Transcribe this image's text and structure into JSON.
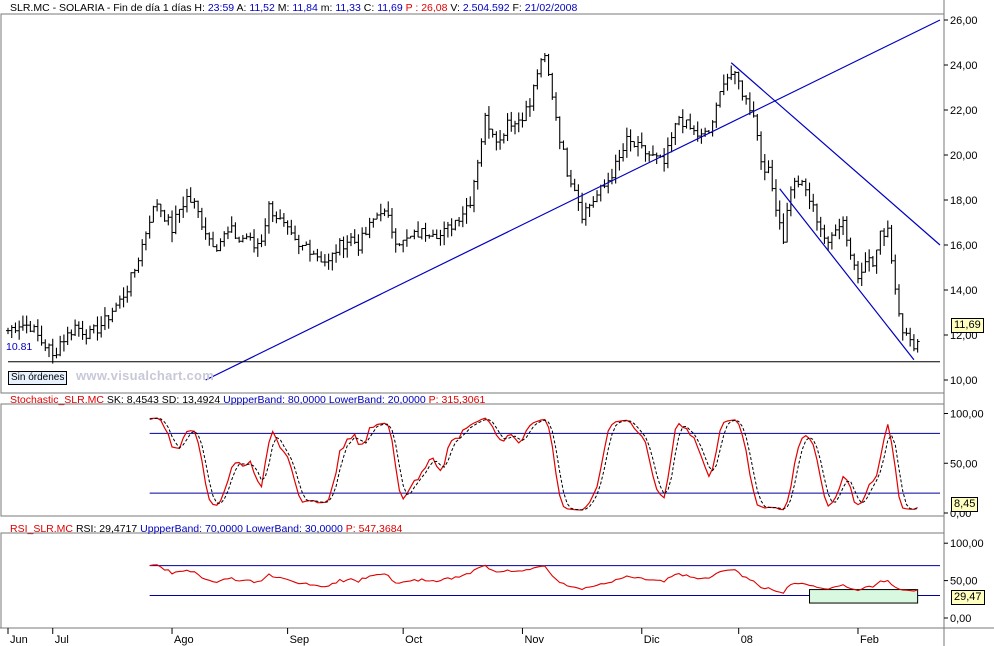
{
  "header": {
    "symbol": "SLR.MC - SOLARIA - Fin de día 1 días",
    "h_label": "H:",
    "h_val": "23:59",
    "a_label": "A:",
    "a_val": "11,52",
    "m_label": "M:",
    "m_val": "11,84",
    "mn_label": "m:",
    "mn_val": "11,33",
    "c_label": "C:",
    "c_val": "11,69",
    "p_label": "P :",
    "p_val": "26,08",
    "v_label": "V:",
    "v_val": "2.504.592",
    "f_label": "F:",
    "f_val": "21/02/2008"
  },
  "stoch_header": {
    "name": "Stochastic_SLR.MC",
    "sk_label": "SK:",
    "sk_val": "8,4543",
    "sd_label": "SD:",
    "sd_val": "13,4924",
    "ub_label": "UppperBand:",
    "ub_val": "80,0000",
    "lb_label": "LowerBand:",
    "lb_val": "20,0000",
    "p_label": "P:",
    "p_val": "315,3061"
  },
  "rsi_header": {
    "name": "RSI_SLR.MC",
    "rsi_label": "RSI:",
    "rsi_val": "29,4717",
    "ub_label": "UppperBand:",
    "ub_val": "70,0000",
    "lb_label": "LowerBand:",
    "lb_val": "30,0000",
    "p_label": "P:",
    "p_val": "547,3684"
  },
  "labels": {
    "support_level": "10.81",
    "no_orders": "Sin órdenes",
    "watermark": "www.visualchart.com",
    "last_price": "11,69",
    "last_stoch": "8,45",
    "last_rsi": "29,47"
  },
  "colors": {
    "price_bars": "#000000",
    "trendline": "#0000c0",
    "stoch_k": "#e00000",
    "stoch_d": "#000000",
    "rsi": "#e00000",
    "bands": "#0000a0",
    "header_blue": "#0000c0",
    "header_red": "#e00000"
  },
  "chart_data": [
    {
      "type": "ohlc",
      "name": "price",
      "ylim": [
        10,
        26
      ],
      "yticks": [
        "10,00",
        "12,00",
        "14,00",
        "16,00",
        "18,00",
        "20,00",
        "22,00",
        "24,00",
        "26,00"
      ],
      "x_months": [
        "Jun",
        "Jul",
        "Ago",
        "Sep",
        "Oct",
        "Nov",
        "Dic",
        "08",
        "Feb"
      ],
      "support": 10.81,
      "close_path": [
        [
          0,
          12.2
        ],
        [
          3,
          12.5
        ],
        [
          6,
          12.4
        ],
        [
          9,
          11.7
        ],
        [
          11,
          11.4
        ],
        [
          12,
          11.0
        ],
        [
          14,
          11.7
        ],
        [
          16,
          12.0
        ],
        [
          18,
          12.4
        ],
        [
          20,
          12.2
        ],
        [
          22,
          12.0
        ],
        [
          24,
          12.3
        ],
        [
          26,
          12.6
        ],
        [
          28,
          13.1
        ],
        [
          30,
          13.5
        ],
        [
          32,
          14.1
        ],
        [
          34,
          14.9
        ],
        [
          36,
          16.0
        ],
        [
          38,
          17.2
        ],
        [
          40,
          17.9
        ],
        [
          42,
          17.3
        ],
        [
          44,
          16.7
        ],
        [
          46,
          17.6
        ],
        [
          48,
          18.1
        ],
        [
          50,
          17.8
        ],
        [
          52,
          17.0
        ],
        [
          54,
          16.3
        ],
        [
          56,
          16.0
        ],
        [
          58,
          16.4
        ],
        [
          60,
          16.6
        ],
        [
          62,
          16.2
        ],
        [
          64,
          16.4
        ],
        [
          66,
          15.9
        ],
        [
          68,
          16.3
        ],
        [
          70,
          17.7
        ],
        [
          72,
          17.3
        ],
        [
          74,
          16.8
        ],
        [
          76,
          16.3
        ],
        [
          78,
          15.8
        ],
        [
          80,
          16.0
        ],
        [
          82,
          15.7
        ],
        [
          84,
          15.4
        ],
        [
          86,
          15.2
        ],
        [
          88,
          15.8
        ],
        [
          90,
          16.1
        ],
        [
          92,
          16.3
        ],
        [
          94,
          16.0
        ],
        [
          96,
          16.5
        ],
        [
          98,
          17.1
        ],
        [
          100,
          17.6
        ],
        [
          102,
          17.1
        ],
        [
          104,
          16.3
        ],
        [
          106,
          16.1
        ],
        [
          108,
          16.3
        ],
        [
          110,
          16.5
        ],
        [
          112,
          16.6
        ],
        [
          114,
          16.7
        ],
        [
          116,
          16.4
        ],
        [
          118,
          16.7
        ],
        [
          120,
          17.1
        ],
        [
          122,
          17.5
        ],
        [
          124,
          18.0
        ],
        [
          126,
          19.8
        ],
        [
          128,
          21.6
        ],
        [
          130,
          21.1
        ],
        [
          132,
          20.6
        ],
        [
          134,
          21.6
        ],
        [
          136,
          21.4
        ],
        [
          138,
          21.8
        ],
        [
          140,
          22.2
        ],
        [
          142,
          23.7
        ],
        [
          144,
          24.3
        ],
        [
          146,
          22.7
        ],
        [
          148,
          20.8
        ],
        [
          150,
          19.3
        ],
        [
          152,
          18.6
        ],
        [
          154,
          17.4
        ],
        [
          156,
          17.8
        ],
        [
          158,
          18.2
        ],
        [
          160,
          18.6
        ],
        [
          162,
          19.2
        ],
        [
          164,
          19.8
        ],
        [
          166,
          20.6
        ],
        [
          168,
          20.4
        ],
        [
          170,
          20.2
        ],
        [
          172,
          20.0
        ],
        [
          174,
          19.8
        ],
        [
          176,
          19.6
        ],
        [
          178,
          20.7
        ],
        [
          180,
          21.7
        ],
        [
          182,
          21.3
        ],
        [
          184,
          21.0
        ],
        [
          186,
          20.8
        ],
        [
          188,
          21.0
        ],
        [
          190,
          22.0
        ],
        [
          192,
          23.4
        ],
        [
          194,
          23.6
        ],
        [
          196,
          23.2
        ],
        [
          198,
          22.4
        ],
        [
          200,
          21.9
        ],
        [
          202,
          19.8
        ],
        [
          204,
          19.2
        ],
        [
          206,
          17.8
        ],
        [
          208,
          16.3
        ],
        [
          210,
          18.6
        ],
        [
          212,
          18.8
        ],
        [
          214,
          18.4
        ],
        [
          216,
          17.6
        ],
        [
          218,
          16.8
        ],
        [
          220,
          15.9
        ],
        [
          222,
          16.9
        ],
        [
          224,
          17.1
        ],
        [
          226,
          15.6
        ],
        [
          228,
          14.6
        ],
        [
          230,
          15.5
        ],
        [
          232,
          15.1
        ],
        [
          234,
          16.4
        ],
        [
          236,
          16.8
        ],
        [
          238,
          14.1
        ],
        [
          240,
          12.3
        ],
        [
          242,
          11.6
        ],
        [
          244,
          11.69
        ]
      ],
      "channel_upper": [
        [
          194,
          24.1
        ],
        [
          250,
          16.0
        ]
      ],
      "channel_lower": [
        [
          207,
          18.5
        ],
        [
          243,
          10.9
        ]
      ],
      "trend_support": [
        [
          53,
          10.0
        ],
        [
          250,
          26.0
        ]
      ],
      "last": "11,69"
    },
    {
      "type": "line",
      "name": "stochastic",
      "ylim": [
        0,
        100
      ],
      "yticks": [
        "0,00",
        "50,00",
        "100,00"
      ],
      "bands": [
        80,
        20
      ],
      "sk_last": 8.4543,
      "sd_last": 13.4924
    },
    {
      "type": "line",
      "name": "rsi",
      "ylim": [
        0,
        100
      ],
      "yticks": [
        "0,00",
        "50,00",
        "100,00"
      ],
      "bands": [
        70,
        30
      ],
      "rsi_last": 29.4717
    }
  ]
}
